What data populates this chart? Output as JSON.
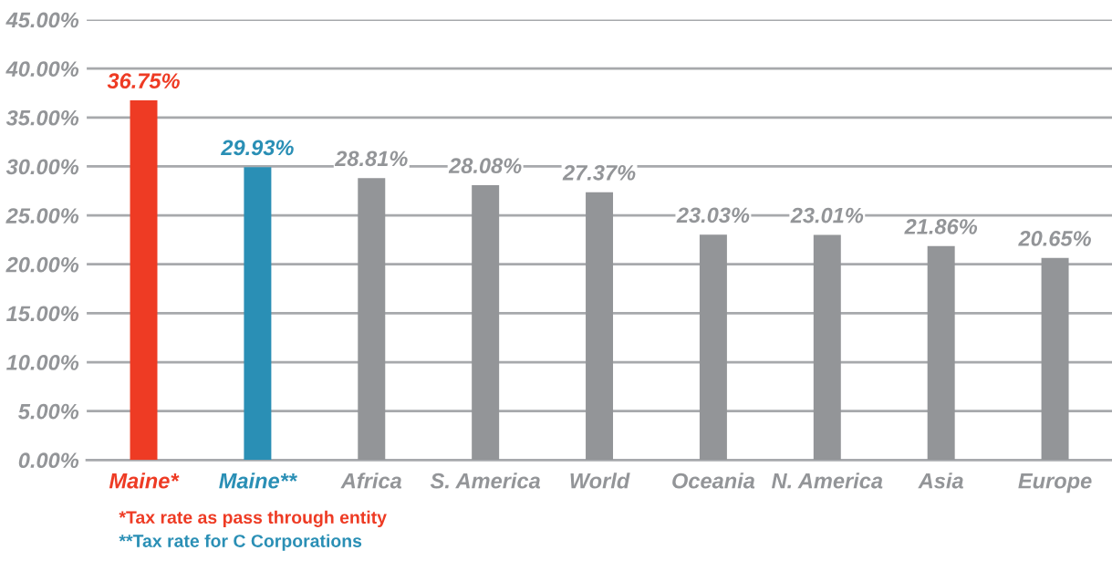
{
  "chart_data": {
    "type": "bar",
    "categories": [
      "Maine*",
      "Maine**",
      "Africa",
      "S. America",
      "World",
      "Oceania",
      "N. America",
      "Asia",
      "Europe"
    ],
    "values": [
      36.75,
      29.93,
      28.81,
      28.08,
      27.37,
      23.03,
      23.01,
      21.86,
      20.65
    ],
    "colors": [
      "#ee3b24",
      "#2a8fb5",
      "#939598",
      "#939598",
      "#939598",
      "#939598",
      "#939598",
      "#939598",
      "#939598"
    ],
    "value_labels": [
      "36.75%",
      "29.93%",
      "28.81%",
      "28.08%",
      "27.37%",
      "23.03%",
      "23.01%",
      "21.86%",
      "20.65%"
    ],
    "ylim": [
      0,
      45
    ],
    "yticks": [
      {
        "value": 0,
        "label": "0.00%"
      },
      {
        "value": 5,
        "label": "5.00%"
      },
      {
        "value": 10,
        "label": "10.00%"
      },
      {
        "value": 15,
        "label": "15.00%"
      },
      {
        "value": 20,
        "label": "20.00%"
      },
      {
        "value": 25,
        "label": "25.00%"
      },
      {
        "value": 30,
        "label": "30.00%"
      },
      {
        "value": 35,
        "label": "35.00%"
      },
      {
        "value": 40,
        "label": "40.00%"
      },
      {
        "value": 45,
        "label": "45.00%"
      }
    ],
    "grid": "y",
    "annotations": [
      "*Tax rate as pass through entity",
      "**Tax rate for C Corporations"
    ]
  }
}
